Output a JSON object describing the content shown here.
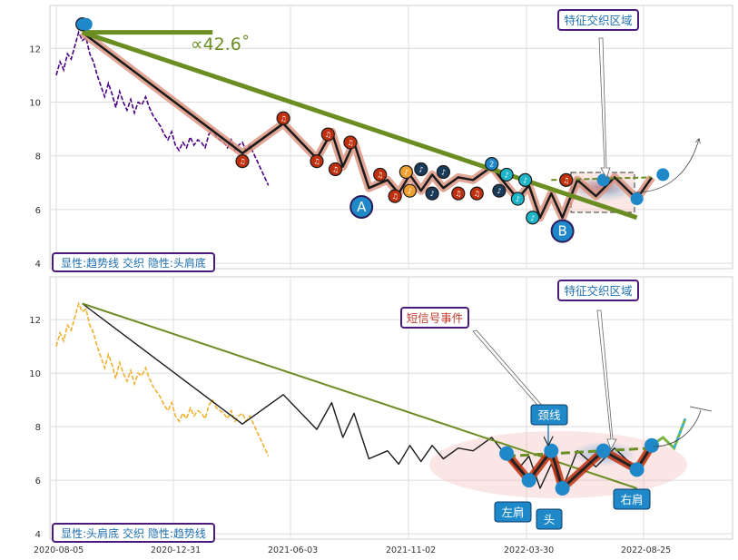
{
  "chart_data": [
    {
      "type": "line",
      "ylim": [
        3.8,
        13.6
      ],
      "yticks": [
        4,
        6,
        8,
        10,
        12
      ],
      "colors": {
        "price": "#4b0082",
        "trend": "#6b8e23",
        "zigzag": "#1a1a1a",
        "halo": "#d9907c",
        "accent": "#1e88c8"
      },
      "price": [
        [
          0,
          11
        ],
        [
          1,
          11.5
        ],
        [
          2,
          11.2
        ],
        [
          3,
          11.8
        ],
        [
          4,
          11.6
        ],
        [
          5,
          12.1
        ],
        [
          6,
          12.6
        ],
        [
          7,
          12.3
        ],
        [
          8,
          12.4
        ],
        [
          9,
          11.8
        ],
        [
          10,
          11.5
        ],
        [
          11,
          11
        ],
        [
          12,
          10.6
        ],
        [
          13,
          10.2
        ],
        [
          14,
          10.7
        ],
        [
          15,
          10.3
        ],
        [
          16,
          9.8
        ],
        [
          17,
          10.4
        ],
        [
          18,
          10
        ],
        [
          19,
          9.7
        ],
        [
          20,
          10.1
        ],
        [
          21,
          9.6
        ],
        [
          22,
          10
        ],
        [
          23,
          9.9
        ],
        [
          24,
          10.2
        ],
        [
          25,
          9.8
        ],
        [
          26,
          9.5
        ],
        [
          27,
          9.3
        ],
        [
          28,
          9.1
        ],
        [
          29,
          8.8
        ],
        [
          30,
          8.6
        ],
        [
          31,
          8.9
        ],
        [
          32,
          8.4
        ],
        [
          33,
          8.2
        ],
        [
          34,
          8.5
        ],
        [
          35,
          8.3
        ],
        [
          36,
          8.7
        ],
        [
          37,
          8.4
        ],
        [
          38,
          8.6
        ],
        [
          39,
          8.5
        ],
        [
          40,
          8.3
        ],
        [
          41,
          8.8
        ],
        [
          42,
          9
        ],
        [
          43,
          8.7
        ],
        [
          44,
          8.6
        ],
        [
          45,
          8.5
        ],
        [
          46,
          8.3
        ],
        [
          47,
          8.6
        ],
        [
          48,
          8.2
        ],
        [
          49,
          8.4
        ],
        [
          50,
          8.5
        ],
        [
          51,
          8.2
        ],
        [
          52,
          8.4
        ],
        [
          53,
          8.1
        ],
        [
          54,
          7.8
        ],
        [
          55,
          7.5
        ],
        [
          56,
          7.2
        ],
        [
          57,
          6.9
        ]
      ],
      "zigzag": [
        [
          7,
          12.6
        ],
        [
          50,
          8.1
        ],
        [
          61,
          9.2
        ],
        [
          70,
          7.9
        ],
        [
          74,
          8.9
        ],
        [
          77,
          7.6
        ],
        [
          80,
          8.5
        ],
        [
          84,
          6.8
        ],
        [
          89,
          7.1
        ],
        [
          92,
          6.6
        ],
        [
          95,
          7.3
        ],
        [
          98,
          6.7
        ],
        [
          101,
          7.3
        ],
        [
          104,
          6.8
        ],
        [
          108,
          7.2
        ],
        [
          112,
          7.1
        ],
        [
          117,
          7.6
        ],
        [
          121,
          6.9
        ],
        [
          124,
          6.4
        ],
        [
          127,
          6.9
        ],
        [
          130,
          5.7
        ],
        [
          133,
          6.6
        ],
        [
          136,
          5.7
        ],
        [
          140,
          7.1
        ],
        [
          145,
          6.5
        ],
        [
          150,
          7.2
        ],
        [
          156,
          6.4
        ],
        [
          160,
          7.2
        ]
      ],
      "trend": [
        [
          7,
          12.6
        ],
        [
          156,
          5.7
        ]
      ],
      "hline": [
        [
          7,
          12.6
        ],
        [
          42,
          12.6
        ]
      ],
      "neckline": [
        [
          133,
          7.1
        ],
        [
          160,
          7.2
        ]
      ],
      "markers": [
        {
          "x": 7,
          "y": 12.9,
          "c": "#1e88c8",
          "g": "1"
        },
        {
          "x": 50,
          "y": 7.8,
          "c": "#c1300e",
          "g": "♫"
        },
        {
          "x": 61,
          "y": 9.4,
          "c": "#c1300e",
          "g": "♫"
        },
        {
          "x": 70,
          "y": 7.8,
          "c": "#c1300e",
          "g": "♫"
        },
        {
          "x": 73,
          "y": 8.8,
          "c": "#c1300e",
          "g": "♫"
        },
        {
          "x": 75,
          "y": 7.5,
          "c": "#c1300e",
          "g": "♫"
        },
        {
          "x": 79,
          "y": 8.5,
          "c": "#c1300e",
          "g": "♫"
        },
        {
          "x": 87,
          "y": 7.3,
          "c": "#c1300e",
          "g": "♫"
        },
        {
          "x": 91,
          "y": 6.5,
          "c": "#c1300e",
          "g": "♫"
        },
        {
          "x": 94,
          "y": 7.4,
          "c": "#f0a030",
          "g": "♪"
        },
        {
          "x": 95,
          "y": 6.7,
          "c": "#f0a030",
          "g": "♪"
        },
        {
          "x": 98,
          "y": 7.5,
          "c": "#1a3a5a",
          "g": "♪"
        },
        {
          "x": 101,
          "y": 6.6,
          "c": "#1a3a5a",
          "g": "♪"
        },
        {
          "x": 104,
          "y": 7.4,
          "c": "#1a3a5a",
          "g": "♪"
        },
        {
          "x": 108,
          "y": 6.6,
          "c": "#c1300e",
          "g": "♫"
        },
        {
          "x": 113,
          "y": 6.6,
          "c": "#c1300e",
          "g": "♫"
        },
        {
          "x": 117,
          "y": 7.7,
          "c": "#1e88c8",
          "g": "2"
        },
        {
          "x": 119,
          "y": 6.7,
          "c": "#1a3a5a",
          "g": "♪"
        },
        {
          "x": 121,
          "y": 7.3,
          "c": "#1fb5c8",
          "g": "♪"
        },
        {
          "x": 124,
          "y": 6.4,
          "c": "#1fb5c8",
          "g": "♪"
        },
        {
          "x": 126,
          "y": 7.1,
          "c": "#1fb5c8",
          "g": "♪"
        },
        {
          "x": 128,
          "y": 5.7,
          "c": "#1fb5c8",
          "g": "♪"
        },
        {
          "x": 137,
          "y": 7.1,
          "c": "#c1300e",
          "g": "♫"
        }
      ],
      "big_markers": [
        {
          "x": 8,
          "y": 12.9
        },
        {
          "x": 147,
          "y": 7.1
        },
        {
          "x": 156,
          "y": 6.4
        },
        {
          "x": 163,
          "y": 7.3
        }
      ],
      "label_A": {
        "x": 82,
        "y": 6.1,
        "text": "A"
      },
      "label_B": {
        "x": 136,
        "y": 5.2,
        "text": "B"
      }
    },
    {
      "type": "line",
      "ylim": [
        3.8,
        13.6
      ],
      "yticks": [
        4,
        6,
        8,
        10,
        12
      ],
      "x_ticks": [
        "2020-08-05",
        "2020-12-31",
        "2021-06-03",
        "2021-11-02",
        "2022-03-30",
        "2022-08-25"
      ],
      "colors": {
        "price": "#f0b030",
        "trend": "#6b8e23",
        "zigzag": "#1a1a1a",
        "halo": "#d9907c",
        "accent": "#1e88c8"
      },
      "price": [
        [
          0,
          11
        ],
        [
          1,
          11.5
        ],
        [
          2,
          11.2
        ],
        [
          3,
          11.8
        ],
        [
          4,
          11.6
        ],
        [
          5,
          12.1
        ],
        [
          6,
          12.6
        ],
        [
          7,
          12.3
        ],
        [
          8,
          12.4
        ],
        [
          9,
          11.8
        ],
        [
          10,
          11.5
        ],
        [
          11,
          11
        ],
        [
          12,
          10.6
        ],
        [
          13,
          10.2
        ],
        [
          14,
          10.7
        ],
        [
          15,
          10.3
        ],
        [
          16,
          9.8
        ],
        [
          17,
          10.4
        ],
        [
          18,
          10
        ],
        [
          19,
          9.7
        ],
        [
          20,
          10.1
        ],
        [
          21,
          9.6
        ],
        [
          22,
          10
        ],
        [
          23,
          9.9
        ],
        [
          24,
          10.2
        ],
        [
          25,
          9.8
        ],
        [
          26,
          9.5
        ],
        [
          27,
          9.3
        ],
        [
          28,
          9.1
        ],
        [
          29,
          8.8
        ],
        [
          30,
          8.6
        ],
        [
          31,
          8.9
        ],
        [
          32,
          8.4
        ],
        [
          33,
          8.2
        ],
        [
          34,
          8.5
        ],
        [
          35,
          8.3
        ],
        [
          36,
          8.7
        ],
        [
          37,
          8.4
        ],
        [
          38,
          8.6
        ],
        [
          39,
          8.5
        ],
        [
          40,
          8.3
        ],
        [
          41,
          8.8
        ],
        [
          42,
          9
        ],
        [
          43,
          8.7
        ],
        [
          44,
          8.6
        ],
        [
          45,
          8.5
        ],
        [
          46,
          8.3
        ],
        [
          47,
          8.6
        ],
        [
          48,
          8.2
        ],
        [
          49,
          8.4
        ],
        [
          50,
          8.5
        ],
        [
          51,
          8.2
        ],
        [
          52,
          8.4
        ],
        [
          53,
          8.1
        ],
        [
          54,
          7.8
        ],
        [
          55,
          7.5
        ],
        [
          56,
          7.2
        ],
        [
          57,
          6.9
        ]
      ],
      "zigzag": [
        [
          7,
          12.6
        ],
        [
          50,
          8.1
        ],
        [
          61,
          9.2
        ],
        [
          70,
          7.9
        ],
        [
          74,
          8.9
        ],
        [
          77,
          7.6
        ],
        [
          80,
          8.5
        ],
        [
          84,
          6.8
        ],
        [
          89,
          7.1
        ],
        [
          92,
          6.6
        ],
        [
          95,
          7.3
        ],
        [
          98,
          6.7
        ],
        [
          101,
          7.3
        ],
        [
          104,
          6.8
        ],
        [
          108,
          7.2
        ],
        [
          112,
          7.1
        ],
        [
          117,
          7.6
        ],
        [
          121,
          6.9
        ],
        [
          124,
          6.4
        ],
        [
          127,
          6.9
        ],
        [
          130,
          5.7
        ],
        [
          133,
          6.6
        ],
        [
          136,
          5.7
        ],
        [
          140,
          7.1
        ],
        [
          145,
          6.5
        ],
        [
          150,
          7.2
        ],
        [
          156,
          6.4
        ],
        [
          160,
          7.2
        ]
      ],
      "trend": [
        [
          7,
          12.6
        ],
        [
          156,
          5.7
        ]
      ],
      "neckline": [
        [
          121,
          6.9
        ],
        [
          160,
          7.2
        ]
      ],
      "hs_points": [
        {
          "x": 121,
          "y": 7
        },
        {
          "x": 127,
          "y": 6
        },
        {
          "x": 133,
          "y": 7.1
        },
        {
          "x": 136,
          "y": 5.7
        },
        {
          "x": 147,
          "y": 7.1
        },
        {
          "x": 156,
          "y": 6.4
        },
        {
          "x": 160,
          "y": 7.3
        }
      ],
      "tail": [
        [
          160,
          7.3
        ],
        [
          163,
          7.6
        ],
        [
          166,
          7.2
        ],
        [
          169,
          8.3
        ]
      ]
    }
  ],
  "panel1": {
    "angle_label": "∝42.6˚",
    "region_label": "特征交织区域",
    "bottom_label": "显性:趋势线 交织 隐性:头肩底"
  },
  "panel2": {
    "region_label": "特征交织区域",
    "signal_label": "短信号事件",
    "neck_label": "颈线",
    "left_shoulder": "左肩",
    "head": "头",
    "right_shoulder": "右肩",
    "bottom_label": "显性:头肩底 交织 隐性:趋势线"
  }
}
